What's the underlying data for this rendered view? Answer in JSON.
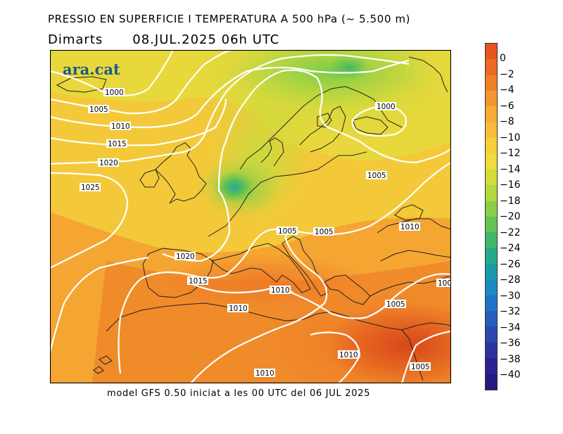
{
  "header": {
    "title": "PRESSIO EN SUPERFICIE I TEMPERATURA A 500 hPa (~ 5.500 m)",
    "day": "Dimarts",
    "datetime": "08.JUL.2025 06h UTC"
  },
  "logo": {
    "text": "ara.cat"
  },
  "footer": {
    "model_text": "model GFS 0.50 iniciat a les 00 UTC del 06 JUL 2025"
  },
  "isobars": {
    "l1000a": "1000",
    "l1005a": "1005",
    "l1010a": "1010",
    "l1015a": "1015",
    "l1020a": "1020",
    "l1025a": "1025",
    "l1000b": "1000",
    "l1005b": "1005",
    "l1005c": "1005",
    "l1005d": "1005",
    "l1010b": "1010",
    "l1020b": "1020",
    "l1015b": "1015",
    "l1010c": "1010",
    "l1010d": "1010",
    "l1005e": "1005",
    "l1010e": "1010",
    "l1010f": "1010",
    "l1005f": "1005",
    "l1005g": "100"
  },
  "colorbar": {
    "labels": [
      "0",
      "−2",
      "−4",
      "−6",
      "−8",
      "−10",
      "−12",
      "−14",
      "−16",
      "−18",
      "−20",
      "−22",
      "−24",
      "−26",
      "−28",
      "−30",
      "−32",
      "−34",
      "−36",
      "−38",
      "−40"
    ],
    "colors": [
      "#e8541e",
      "#ec6a22",
      "#f08028",
      "#f49630",
      "#f7aa34",
      "#f8bd38",
      "#f6cf3a",
      "#eedd3c",
      "#d4dc3c",
      "#b2d83e",
      "#8acf44",
      "#62c452",
      "#3fb66a",
      "#26a88a",
      "#1a9aa8",
      "#1a8ac4",
      "#1e74c6",
      "#245ebc",
      "#2a48ae",
      "#2c34a0",
      "#2a2290",
      "#241a80"
    ]
  }
}
